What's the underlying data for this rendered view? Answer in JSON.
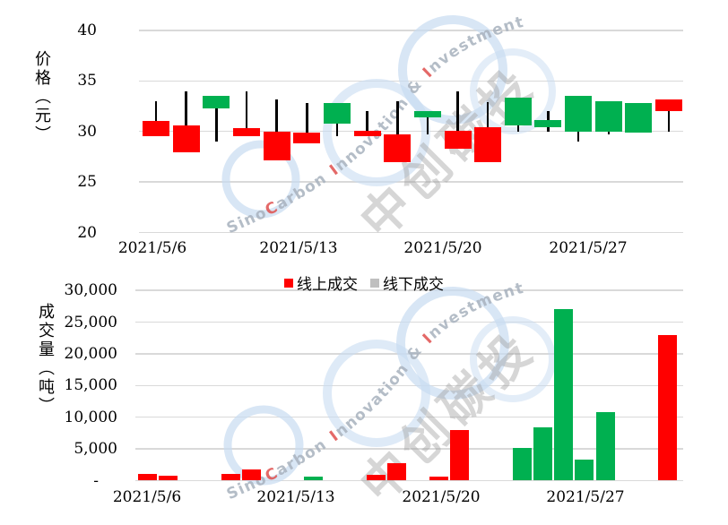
{
  "colors": {
    "up_red": "#FF0000",
    "down_green": "#00B050",
    "grid": "#D9D9D9",
    "axis_text": "#000000",
    "legend_online_swatch": "#FF0000",
    "legend_offline_swatch": "#BFBFBF",
    "watermark_ring_blue": "#C8DCF1",
    "watermark_text_gray": "#A8B2BE",
    "watermark_accent_red": "#E0504E",
    "watermark_cjk_gray": "#9B9B9B"
  },
  "chart_data": [
    {
      "type": "candlestick",
      "title": "",
      "xlabel": "",
      "ylabel": "价格（元）",
      "ylim": [
        20,
        40
      ],
      "grid": true,
      "y_ticks": [
        "40",
        "35",
        "30",
        "25",
        "20"
      ],
      "y_tick_values": [
        40,
        35,
        30,
        25,
        20
      ],
      "x_tick_labels": [
        "2021/5/6",
        "2021/5/13",
        "2021/5/20",
        "2021/5/27"
      ],
      "candles": [
        {
          "date": "2021/5/6",
          "open": 29.5,
          "high": 33.0,
          "low": 29.5,
          "close": 31.0,
          "direction": "up"
        },
        {
          "date": "2021/5/7",
          "open": 27.9,
          "high": 34.0,
          "low": 27.9,
          "close": 30.6,
          "direction": "up"
        },
        {
          "date": "2021/5/10",
          "open": 33.5,
          "high": 33.5,
          "low": 29.0,
          "close": 32.3,
          "direction": "down"
        },
        {
          "date": "2021/5/11",
          "open": 29.5,
          "high": 34.0,
          "low": 29.5,
          "close": 30.3,
          "direction": "up"
        },
        {
          "date": "2021/5/12",
          "open": 27.1,
          "high": 33.2,
          "low": 27.1,
          "close": 30.0,
          "direction": "up"
        },
        {
          "date": "2021/5/13",
          "open": 28.8,
          "high": 32.8,
          "low": 28.8,
          "close": 29.9,
          "direction": "up"
        },
        {
          "date": "2021/5/14",
          "open": 32.8,
          "high": 32.8,
          "low": 29.5,
          "close": 30.8,
          "direction": "down"
        },
        {
          "date": "2021/5/17",
          "open": 29.5,
          "high": 32.0,
          "low": 29.5,
          "close": 30.1,
          "direction": "up"
        },
        {
          "date": "2021/5/18",
          "open": 27.0,
          "high": 33.0,
          "low": 27.0,
          "close": 29.7,
          "direction": "up"
        },
        {
          "date": "2021/5/19",
          "open": 32.0,
          "high": 32.0,
          "low": 29.7,
          "close": 31.4,
          "direction": "down"
        },
        {
          "date": "2021/5/20",
          "open": 28.3,
          "high": 34.0,
          "low": 28.3,
          "close": 30.1,
          "direction": "up"
        },
        {
          "date": "2021/5/21",
          "open": 27.0,
          "high": 32.9,
          "low": 27.0,
          "close": 30.4,
          "direction": "up"
        },
        {
          "date": "2021/5/24",
          "open": 33.3,
          "high": 33.3,
          "low": 30.0,
          "close": 30.6,
          "direction": "down"
        },
        {
          "date": "2021/5/25",
          "open": 31.1,
          "high": 32.0,
          "low": 30.0,
          "close": 30.4,
          "direction": "down"
        },
        {
          "date": "2021/5/26",
          "open": 33.5,
          "high": 33.5,
          "low": 29.0,
          "close": 30.0,
          "direction": "down"
        },
        {
          "date": "2021/5/27",
          "open": 33.0,
          "high": 33.0,
          "low": 29.7,
          "close": 30.0,
          "direction": "down"
        },
        {
          "date": "2021/5/28",
          "open": 32.8,
          "high": 32.8,
          "low": 29.9,
          "close": 29.9,
          "direction": "down"
        },
        {
          "date": "2021/5/31",
          "open": 32.0,
          "high": 33.2,
          "low": 30.0,
          "close": 33.2,
          "direction": "up"
        }
      ]
    },
    {
      "type": "bar",
      "title": "",
      "xlabel": "",
      "ylabel": "成交量（吨）",
      "ylim": [
        0,
        30000
      ],
      "grid": true,
      "y_ticks": [
        "30,000",
        "25,000",
        "20,000",
        "15,000",
        "10,000",
        "5,000",
        "-"
      ],
      "y_tick_values": [
        30000,
        25000,
        20000,
        15000,
        10000,
        5000,
        0
      ],
      "x_tick_labels": [
        "2021/5/6",
        "2021/5/13",
        "2021/5/20",
        "2021/5/27"
      ],
      "legend": [
        {
          "label": "线上成交",
          "swatch": "#FF0000"
        },
        {
          "label": "线下成交",
          "swatch": "#BFBFBF"
        }
      ],
      "bars": [
        {
          "date": "2021/5/6",
          "value": 1100,
          "series": "线上成交"
        },
        {
          "date": "2021/5/7",
          "value": 800,
          "series": "线上成交"
        },
        {
          "date": "2021/5/10",
          "value": 1100,
          "series": "线上成交"
        },
        {
          "date": "2021/5/11",
          "value": 1700,
          "series": "线上成交"
        },
        {
          "date": "2021/5/14",
          "value": 600,
          "series": "线下成交"
        },
        {
          "date": "2021/5/17",
          "value": 950,
          "series": "线上成交"
        },
        {
          "date": "2021/5/18",
          "value": 2700,
          "series": "线上成交"
        },
        {
          "date": "2021/5/20",
          "value": 700,
          "series": "线上成交"
        },
        {
          "date": "2021/5/21",
          "value": 8000,
          "series": "线上成交"
        },
        {
          "date": "2021/5/24",
          "value": 5200,
          "series": "线下成交"
        },
        {
          "date": "2021/5/25",
          "value": 8400,
          "series": "线下成交"
        },
        {
          "date": "2021/5/26",
          "value": 27000,
          "series": "线下成交"
        },
        {
          "date": "2021/5/27",
          "value": 3300,
          "series": "线下成交"
        },
        {
          "date": "2021/5/28",
          "value": 10800,
          "series": "线下成交"
        },
        {
          "date": "2021/5/31",
          "value": 23000,
          "series": "线上成交"
        }
      ]
    }
  ],
  "watermark": {
    "brand_parts": [
      "Sino",
      "C",
      "arbon",
      "I",
      "nnovation",
      "&",
      "I",
      "nvestment"
    ],
    "cjk_chars": [
      "中",
      "创",
      "碳",
      "投"
    ]
  }
}
